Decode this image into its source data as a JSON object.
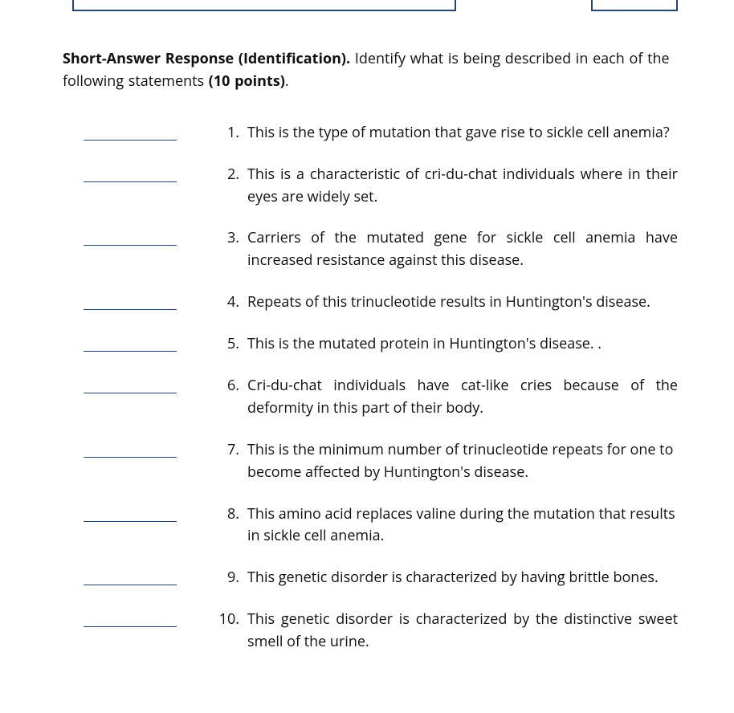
{
  "colors": {
    "text": "#111111",
    "rule_blue": "#26456e",
    "page_bg": "#ffffff"
  },
  "typography": {
    "body_fontsize_pt": 13.5,
    "line_height": 1.55,
    "font_family": "Open Sans / Segoe UI / Arial"
  },
  "intro": {
    "lead_bold": "Short-Answer Response (Identification).",
    "lead_rest": " Identify what is being described in each of the following statements ",
    "points_bold": "(10 points)",
    "tail": "."
  },
  "questions": [
    {
      "n": "1.",
      "text": "This is the type of mutation that gave rise to sickle cell anemia?",
      "justify": false
    },
    {
      "n": "2.",
      "text": "This is a characteristic of cri-du-chat individuals where in their eyes are widely set.",
      "justify": true
    },
    {
      "n": "3.",
      "text": "Carriers of the mutated gene for sickle cell anemia have increased resistance against this disease.",
      "justify": true
    },
    {
      "n": "4.",
      "text": "Repeats of this trinucleotide results in Huntington's disease.",
      "justify": false
    },
    {
      "n": "5.",
      "text": "This is the mutated protein in Huntington's disease.               .",
      "justify": false
    },
    {
      "n": "6.",
      "text": "Cri-du-chat individuals have cat-like cries because of the deformity in this part of their body.",
      "justify": true
    },
    {
      "n": "7.",
      "text": "This is the minimum number of trinucleotide repeats for one to become affected by Huntington's disease.",
      "justify": false
    },
    {
      "n": "8.",
      "text": "This amino acid replaces valine during the mutation that results in sickle cell anemia.",
      "justify": false
    },
    {
      "n": "9.",
      "text": "This genetic disorder is characterized by having brittle bones.",
      "justify": false
    },
    {
      "n": "10.",
      "text": "This genetic disorder is characterized by the distinctive sweet smell of the urine.",
      "justify": true
    }
  ]
}
